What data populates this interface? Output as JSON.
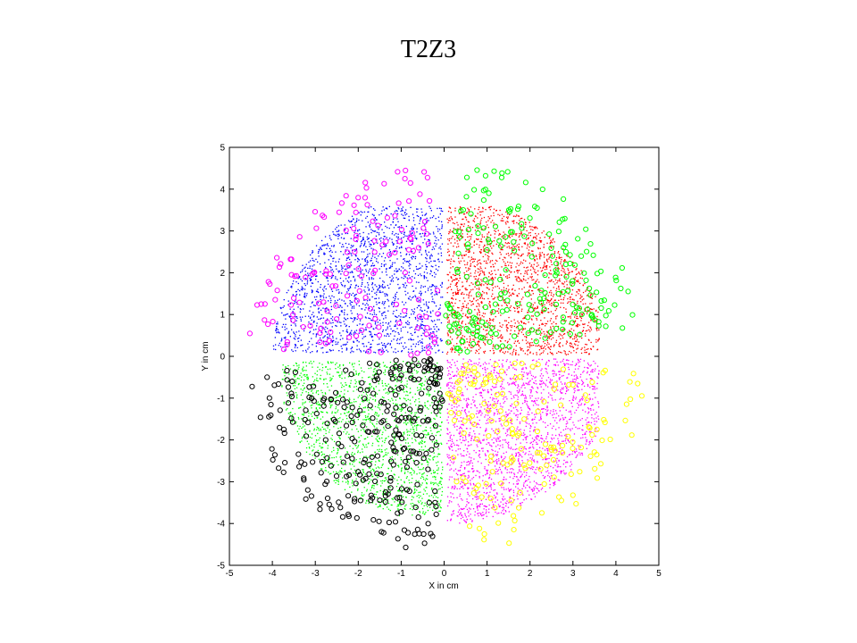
{
  "slide": {
    "title": "T2Z3"
  },
  "colors": {
    "blue": "#0000ff",
    "red": "#ff0000",
    "green": "#00ff00",
    "magenta": "#ff00ff",
    "yellow": "#ffff00",
    "black": "#000000"
  },
  "chart_data": {
    "type": "scatter",
    "title": "",
    "xlabel": "X in cm",
    "ylabel": "Y in cm",
    "xlim": [
      -5,
      5
    ],
    "ylim": [
      -5,
      5
    ],
    "xticks": [
      -5,
      -4,
      -3,
      -2,
      -1,
      0,
      1,
      2,
      3,
      4,
      5
    ],
    "yticks": [
      -5,
      -4,
      -3,
      -2,
      -1,
      0,
      1,
      2,
      3,
      4,
      5
    ],
    "grid": false,
    "legend": "none",
    "dot_series": [
      {
        "color": "#0000ff",
        "quadrant": "upper-left",
        "region": {
          "cx": 0,
          "cy": 0,
          "r_max": 4.0,
          "x_range": [
            -4.3,
            -0.05
          ],
          "y_range": [
            0.1,
            3.6
          ]
        },
        "count": 1800
      },
      {
        "color": "#ff0000",
        "quadrant": "upper-right",
        "region": {
          "cx": 0,
          "cy": 0,
          "r_max": 3.8,
          "x_range": [
            0.05,
            3.6
          ],
          "y_range": [
            0.05,
            3.6
          ]
        },
        "count": 2000
      },
      {
        "color": "#00ff00",
        "quadrant": "lower-left",
        "region": {
          "cx": 0,
          "cy": 0,
          "r_max": 3.95,
          "x_range": [
            -3.8,
            -0.05
          ],
          "y_range": [
            -3.8,
            -0.1
          ]
        },
        "count": 1800
      },
      {
        "color": "#ff00ff",
        "quadrant": "lower-right",
        "region": {
          "cx": 0,
          "cy": 0,
          "r_max": 4.0,
          "x_range": [
            0.05,
            3.6
          ],
          "y_range": [
            -4.2,
            -0.05
          ]
        },
        "count": 2000
      }
    ],
    "circle_series": [
      {
        "color": "#ff00ff",
        "quadrant": "upper-left",
        "count": 110,
        "r_range": [
          2.6,
          4.6
        ],
        "angle_range_deg": [
          95,
          178
        ],
        "interior_count": 35
      },
      {
        "color": "#00ff00",
        "quadrant": "upper-right",
        "count": 120,
        "r_range": [
          2.8,
          4.7
        ],
        "angle_range_deg": [
          8,
          88
        ],
        "interior_count": 90
      },
      {
        "color": "#000000",
        "quadrant": "lower-left",
        "count": 170,
        "r_range": [
          2.5,
          4.7
        ],
        "angle_range_deg": [
          185,
          268
        ],
        "interior_count": 120
      },
      {
        "color": "#ffff00",
        "quadrant": "lower-right",
        "count": 90,
        "r_range": [
          2.8,
          4.8
        ],
        "angle_range_deg": [
          275,
          355
        ],
        "interior_count": 70
      }
    ]
  }
}
